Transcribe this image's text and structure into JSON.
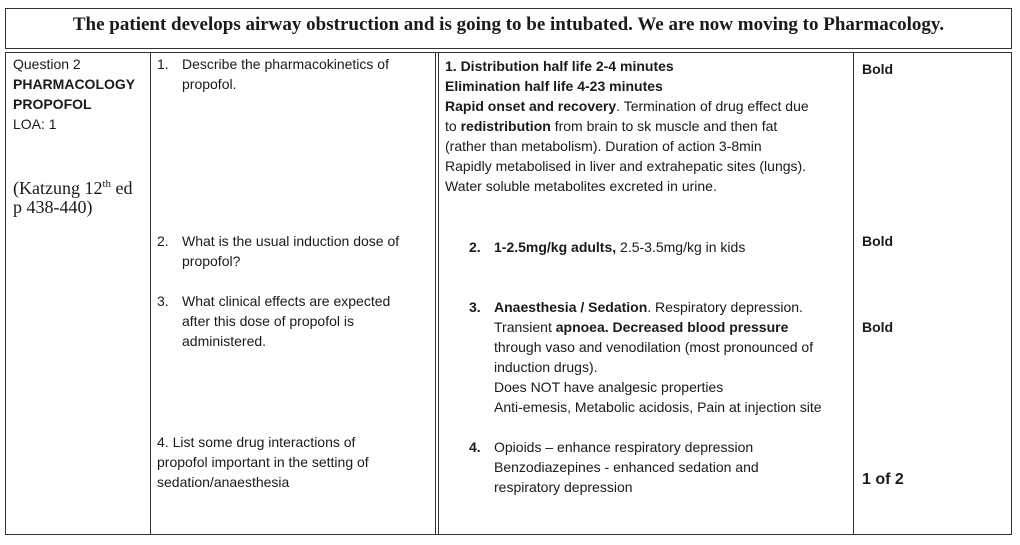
{
  "header": {
    "title": "The patient develops airway obstruction and is going to be intubated. We are now moving to Pharmacology."
  },
  "meta": {
    "question": "Question 2",
    "topic": "PHARMACOLOGY",
    "drug": "PROPOFOL",
    "loa": "LOA: 1",
    "reference_1": "(Katzung 12",
    "reference_sup": "th",
    "reference_2": " ed",
    "reference_3": "p 438-440)"
  },
  "questions": [
    {
      "num": "1.",
      "line1": "Describe the pharmacokinetics of",
      "line2": "propofol."
    },
    {
      "num": "2.",
      "line1": "What is the usual induction dose of",
      "line2": "propofol?"
    },
    {
      "num": "3.",
      "line1": "What clinical effects are expected",
      "line2": "after this dose of propofol is",
      "line3": "administered."
    },
    {
      "num": "4.",
      "line1": "List some drug interactions of",
      "line2": "propofol important in the setting of",
      "line3": "sedation/anaesthesia"
    }
  ],
  "answers": {
    "a1": {
      "num_bold": "1. Distribution half life 2-4 minutes",
      "line2": "Elimination half life 4-23 minutes",
      "line3_bold": "Rapid onset and recovery",
      "line3_rest": ". Termination of drug effect due",
      "line4_pre": "to ",
      "line4_bold": "redistribution",
      "line4_rest": " from brain to sk muscle and then fat",
      "line5": "(rather than metabolism). Duration of action 3-8min",
      "line6": "Rapidly metabolised in liver and extrahepatic sites (lungs).",
      "line7": "Water soluble metabolites excreted in urine."
    },
    "a2": {
      "num": "2.",
      "bold": "1-2.5mg/kg adults,",
      "rest": " 2.5-3.5mg/kg in kids"
    },
    "a3": {
      "num": "3.",
      "line1_bold": "Anaesthesia / Sedation",
      "line1_rest": ". Respiratory depression.",
      "line2_pre": "Transient ",
      "line2_bold1": "apnoea",
      "line2_mid": ". ",
      "line2_bold2": "Decreased blood pressure",
      "line3": "through vaso and venodilation (most pronounced of",
      "line4": "induction drugs).",
      "line5": "Does NOT have analgesic properties",
      "line6": "Anti-emesis, Metabolic acidosis, Pain at injection site"
    },
    "a4": {
      "num": "4.",
      "line1": "Opioids – enhance respiratory depression",
      "line2": "Benzodiazepines - enhanced sedation and",
      "line3": "respiratory depression"
    }
  },
  "marks": [
    "Bold",
    "Bold",
    "Bold"
  ],
  "page_number": "1 of 2"
}
